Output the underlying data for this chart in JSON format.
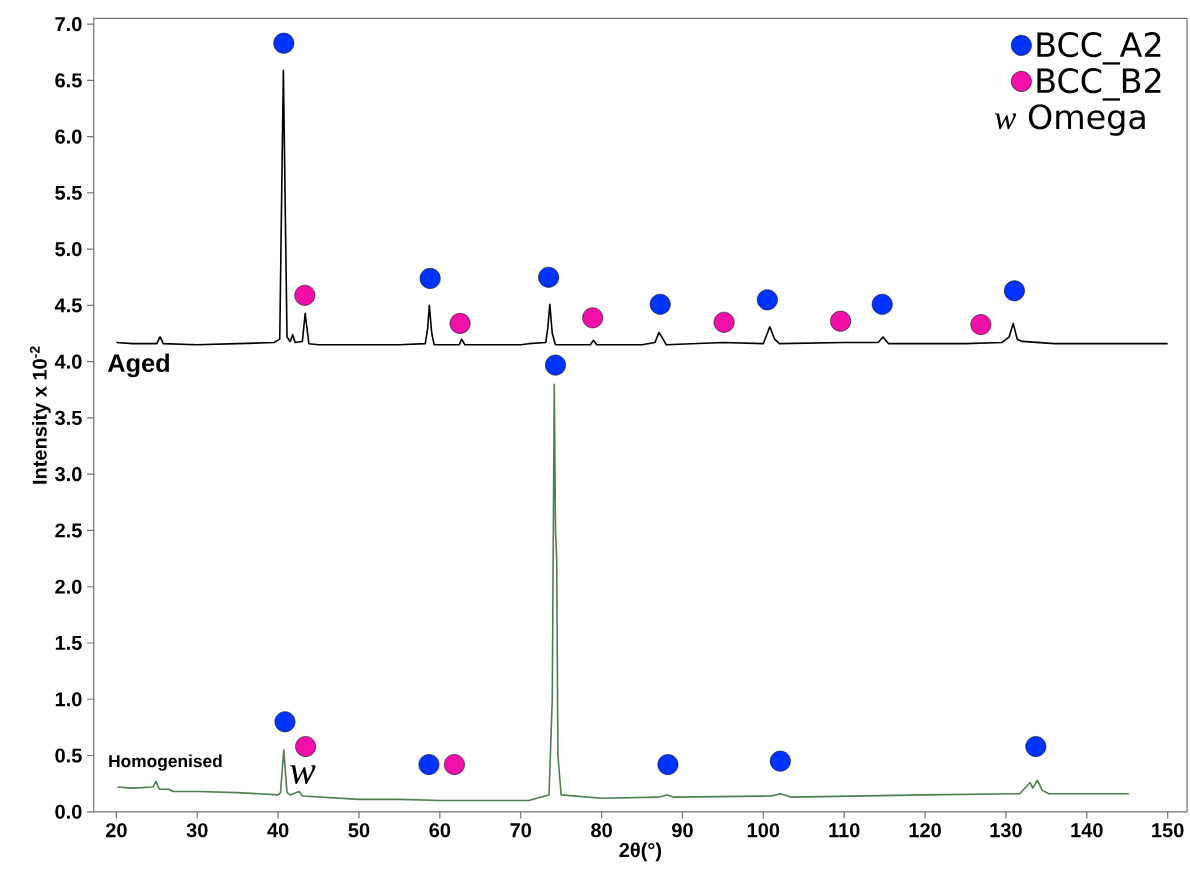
{
  "chart_data": {
    "type": "line",
    "xlabel": "2θ(°)",
    "ylabel": "Intensity x 10$^{-2}$",
    "xlim": [
      17.2,
      152.4
    ],
    "ylim": [
      0,
      7.05
    ],
    "xticks": [
      20,
      30,
      40,
      50,
      60,
      70,
      80,
      90,
      100,
      110,
      120,
      130,
      140,
      150
    ],
    "yticks": [
      {
        "value": 0,
        "label": "0.0"
      },
      {
        "value": 0.5,
        "label": "0.5"
      },
      {
        "value": 1,
        "label": "1.0"
      },
      {
        "value": 1.5,
        "label": "1.5"
      },
      {
        "value": 2,
        "label": "2.0"
      },
      {
        "value": 2.5,
        "label": "2.5"
      },
      {
        "value": 3,
        "label": "3.0"
      },
      {
        "value": 3.5,
        "label": "3.5"
      },
      {
        "value": 4,
        "label": "4.0"
      },
      {
        "value": 4.5,
        "label": "4.5"
      },
      {
        "value": 5,
        "label": "5.0"
      },
      {
        "value": 5.5,
        "label": "5.5"
      },
      {
        "value": 6,
        "label": "6.0"
      },
      {
        "value": 6.5,
        "label": "6.5"
      },
      {
        "value": 7,
        "label": "7.0"
      }
    ],
    "grid": false,
    "legend": "top right",
    "annotations": [
      "w",
      "*w* Omega"
    ],
    "series": [
      {
        "name": "Aged",
        "color": "#000000",
        "x": [
          20,
          22,
          25,
          25.4,
          25.8,
          30,
          35,
          39.5,
          40.2,
          40.65,
          41.1,
          41.5,
          41.8,
          42.1,
          43.0,
          43.35,
          43.8,
          45,
          50,
          55,
          58.2,
          58.5,
          58.7,
          59.0,
          59.3,
          62.4,
          62.7,
          63.1,
          70,
          71,
          73.1,
          73.35,
          73.6,
          73.9,
          74.3,
          78.6,
          79.0,
          79.4,
          85,
          86.6,
          87.1,
          87.6,
          88,
          95,
          100,
          100.8,
          101.4,
          102,
          110,
          114.2,
          114.8,
          115.5,
          125,
          129.5,
          130.4,
          130.9,
          131.4,
          132,
          136,
          140,
          145,
          150
        ],
        "values": [
          4.17,
          4.16,
          4.16,
          4.22,
          4.16,
          4.15,
          4.16,
          4.17,
          4.2,
          6.59,
          4.22,
          4.18,
          4.24,
          4.17,
          4.18,
          4.43,
          4.16,
          4.15,
          4.15,
          4.15,
          4.16,
          4.3,
          4.5,
          4.25,
          4.15,
          4.15,
          4.2,
          4.15,
          4.15,
          4.16,
          4.17,
          4.3,
          4.51,
          4.25,
          4.15,
          4.15,
          4.19,
          4.15,
          4.15,
          4.17,
          4.26,
          4.2,
          4.15,
          4.17,
          4.16,
          4.31,
          4.2,
          4.16,
          4.17,
          4.17,
          4.22,
          4.16,
          4.16,
          4.17,
          4.22,
          4.34,
          4.2,
          4.18,
          4.16,
          4.16,
          4.16,
          4.16
        ]
      },
      {
        "name": "Homogenised",
        "color": "#4f7f4f",
        "x": [
          20.1,
          22,
          24.5,
          24.9,
          25.3,
          26.5,
          27,
          28,
          30,
          35,
          40,
          40.3,
          40.7,
          41.1,
          41.5,
          42.6,
          43,
          50,
          55,
          60,
          65,
          71,
          72,
          73.5,
          73.9,
          74.15,
          74.3,
          74.45,
          74.6,
          75,
          80,
          87,
          88.1,
          89,
          101,
          102.1,
          103.5,
          120,
          131.7,
          133.0,
          133.3,
          133.9,
          134.5,
          135.3,
          145.2
        ],
        "values": [
          0.22,
          0.21,
          0.22,
          0.27,
          0.2,
          0.2,
          0.18,
          0.18,
          0.18,
          0.17,
          0.15,
          0.17,
          0.55,
          0.17,
          0.15,
          0.18,
          0.14,
          0.11,
          0.11,
          0.1,
          0.1,
          0.1,
          0.12,
          0.15,
          1.0,
          3.8,
          2.5,
          2.25,
          0.5,
          0.15,
          0.12,
          0.13,
          0.15,
          0.13,
          0.14,
          0.16,
          0.13,
          0.15,
          0.16,
          0.26,
          0.21,
          0.28,
          0.19,
          0.16,
          0.16
        ]
      },
      {
        "name": "BCC_A2",
        "type": "scatter",
        "marker": "circle",
        "color": "#0033ff",
        "x": [
          40.7,
          58.8,
          73.45,
          87.25,
          100.5,
          114.7,
          131.05,
          74.3,
          40.85,
          58.65,
          88.2,
          102.1,
          133.7
        ],
        "values": [
          6.83,
          4.74,
          4.75,
          4.51,
          4.55,
          4.51,
          4.63,
          3.97,
          0.8,
          0.42,
          0.42,
          0.45,
          0.58
        ]
      },
      {
        "name": "BCC_B2",
        "type": "scatter",
        "marker": "circle",
        "color": "#f00fa8",
        "x": [
          43.3,
          62.5,
          78.9,
          95.15,
          109.55,
          126.9,
          43.4,
          61.8
        ],
        "values": [
          4.59,
          4.34,
          4.39,
          4.35,
          4.36,
          4.33,
          0.58,
          0.42
        ]
      }
    ]
  }
}
